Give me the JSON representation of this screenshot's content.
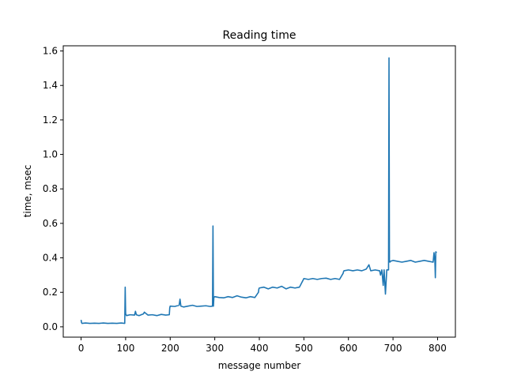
{
  "chart_data": {
    "type": "line",
    "title": "Reading time",
    "xlabel": "message number",
    "ylabel": "time, msec",
    "xlim": [
      -40,
      840
    ],
    "ylim": [
      -0.06,
      1.63
    ],
    "xticks": [
      0,
      100,
      200,
      300,
      400,
      500,
      600,
      700,
      800
    ],
    "xtick_labels": [
      "0",
      "100",
      "200",
      "300",
      "400",
      "500",
      "600",
      "700",
      "800"
    ],
    "yticks": [
      0.0,
      0.2,
      0.4,
      0.6,
      0.8,
      1.0,
      1.2,
      1.4,
      1.6
    ],
    "ytick_labels": [
      "0.0",
      "0.2",
      "0.4",
      "0.6",
      "0.8",
      "1.0",
      "1.2",
      "1.4",
      "1.6"
    ],
    "grid": false,
    "line_color": "#1f77b4",
    "series": [
      {
        "x": [
          0,
          1,
          2,
          10,
          20,
          30,
          40,
          50,
          60,
          70,
          80,
          90,
          98,
          99,
          100,
          101,
          102,
          110,
          120,
          122,
          124,
          130,
          140,
          142,
          150,
          160,
          170,
          180,
          190,
          198,
          199,
          200,
          210,
          220,
          222,
          224,
          230,
          240,
          250,
          260,
          270,
          280,
          290,
          295,
          296,
          297,
          298,
          300,
          310,
          320,
          330,
          340,
          350,
          360,
          370,
          380,
          390,
          398,
          399,
          400,
          410,
          420,
          430,
          440,
          450,
          460,
          470,
          480,
          490,
          498,
          499,
          500,
          510,
          520,
          530,
          540,
          550,
          560,
          570,
          580,
          588,
          589,
          590,
          600,
          610,
          620,
          630,
          640,
          646,
          650,
          660,
          670,
          672,
          675,
          678,
          680,
          683,
          686,
          690,
          691,
          692,
          693,
          694,
          700,
          710,
          720,
          730,
          740,
          750,
          760,
          770,
          780,
          790,
          792,
          794,
          795,
          796,
          798
        ],
        "y": [
          0.04,
          0.025,
          0.02,
          0.022,
          0.02,
          0.021,
          0.02,
          0.022,
          0.02,
          0.021,
          0.02,
          0.022,
          0.02,
          0.23,
          0.075,
          0.07,
          0.065,
          0.07,
          0.068,
          0.09,
          0.07,
          0.065,
          0.075,
          0.085,
          0.068,
          0.07,
          0.065,
          0.072,
          0.068,
          0.07,
          0.11,
          0.12,
          0.118,
          0.125,
          0.16,
          0.12,
          0.115,
          0.12,
          0.125,
          0.118,
          0.12,
          0.122,
          0.118,
          0.12,
          0.585,
          0.12,
          0.17,
          0.175,
          0.17,
          0.168,
          0.175,
          0.17,
          0.18,
          0.172,
          0.168,
          0.175,
          0.17,
          0.2,
          0.22,
          0.225,
          0.23,
          0.22,
          0.23,
          0.225,
          0.235,
          0.22,
          0.23,
          0.225,
          0.23,
          0.27,
          0.275,
          0.28,
          0.275,
          0.28,
          0.275,
          0.28,
          0.282,
          0.275,
          0.28,
          0.275,
          0.31,
          0.32,
          0.325,
          0.33,
          0.325,
          0.33,
          0.325,
          0.335,
          0.36,
          0.325,
          0.33,
          0.325,
          0.3,
          0.33,
          0.24,
          0.33,
          0.19,
          0.33,
          0.33,
          1.56,
          0.38,
          0.375,
          0.38,
          0.385,
          0.38,
          0.375,
          0.38,
          0.385,
          0.375,
          0.38,
          0.385,
          0.38,
          0.375,
          0.43,
          0.38,
          0.285,
          0.435,
          0.43
        ]
      }
    ]
  }
}
